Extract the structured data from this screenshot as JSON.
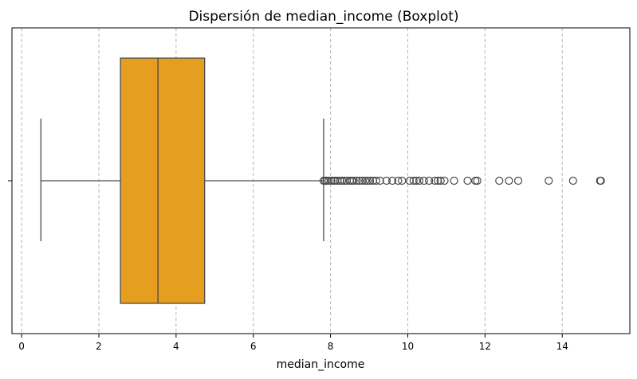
{
  "chart_data": {
    "type": "boxplot",
    "title": "Dispersión de median_income (Boxplot)",
    "xlabel": "median_income",
    "ylabel": "",
    "xlim": [
      -0.25,
      15.75
    ],
    "xticks": [
      0,
      2,
      4,
      6,
      8,
      10,
      12,
      14
    ],
    "grid": "x-dashed",
    "box": {
      "whisker_low": 0.5,
      "q1": 2.56,
      "median": 3.53,
      "q3": 4.74,
      "whisker_high": 7.82,
      "color": "#e59e1f",
      "edge_color": "#4a4a4a"
    },
    "outliers": [
      7.82,
      7.86,
      7.9,
      7.95,
      8.02,
      8.08,
      8.12,
      8.18,
      8.25,
      8.3,
      8.36,
      8.42,
      8.5,
      8.55,
      8.6,
      8.68,
      8.75,
      8.82,
      8.9,
      8.96,
      9.02,
      9.1,
      9.18,
      9.28,
      9.45,
      9.6,
      9.75,
      9.85,
      10.05,
      10.15,
      10.22,
      10.3,
      10.42,
      10.55,
      10.7,
      10.78,
      10.85,
      10.95,
      11.2,
      11.55,
      11.75,
      11.8,
      12.37,
      12.62,
      12.86,
      13.65,
      14.28,
      14.98,
      15.0
    ]
  }
}
